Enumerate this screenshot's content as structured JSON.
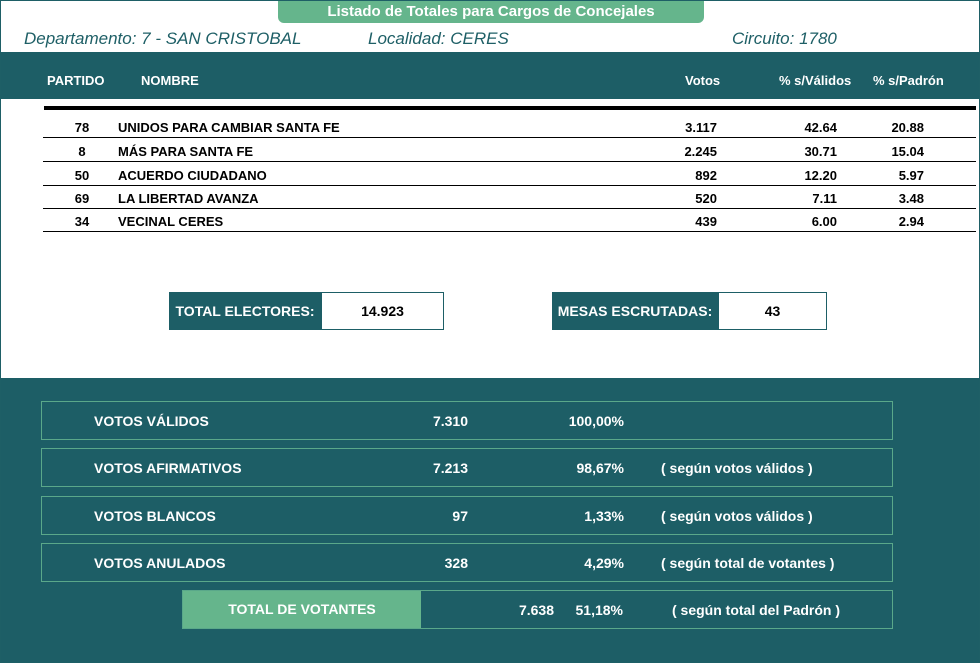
{
  "title": "Listado de Totales para Cargos de Concejales",
  "location": {
    "departamento": "Departamento: 7 - SAN CRISTOBAL",
    "localidad": "Localidad: CERES",
    "circuito": "Circuito: 1780"
  },
  "table": {
    "headers": {
      "partido": "PARTIDO",
      "nombre": "NOMBRE",
      "votos": "Votos",
      "validos": "% s/Válidos",
      "padron": "% s/Padrón"
    },
    "rows": [
      {
        "partido": "78",
        "nombre": "UNIDOS PARA CAMBIAR SANTA FE",
        "votos": "3.117",
        "validos": "42.64",
        "padron": "20.88"
      },
      {
        "partido": "8",
        "nombre": "MÁS PARA SANTA FE",
        "votos": "2.245",
        "validos": "30.71",
        "padron": "15.04"
      },
      {
        "partido": "50",
        "nombre": "ACUERDO CIUDADANO",
        "votos": "892",
        "validos": "12.20",
        "padron": "5.97"
      },
      {
        "partido": "69",
        "nombre": "LA LIBERTAD AVANZA",
        "votos": "520",
        "validos": "7.11",
        "padron": "3.48"
      },
      {
        "partido": "34",
        "nombre": "VECINAL CERES",
        "votos": "439",
        "validos": "6.00",
        "padron": "2.94"
      }
    ]
  },
  "stats": {
    "total_electores_label": "TOTAL ELECTORES:",
    "total_electores_value": "14.923",
    "mesas_label": "MESAS ESCRUTADAS:",
    "mesas_value": "43"
  },
  "summary": [
    {
      "label": "VOTOS VÁLIDOS",
      "num": "7.310",
      "pct": "100,00%",
      "note": ""
    },
    {
      "label": "VOTOS AFIRMATIVOS",
      "num": "7.213",
      "pct": "98,67%",
      "note": "( según votos válidos )"
    },
    {
      "label": "VOTOS BLANCOS",
      "num": "97",
      "pct": "1,33%",
      "note": "( según votos válidos )"
    },
    {
      "label": "VOTOS ANULADOS",
      "num": "328",
      "pct": "4,29%",
      "note": "( según total de votantes )"
    }
  ],
  "total_votantes": {
    "label": "TOTAL DE VOTANTES",
    "num": "7.638",
    "pct": "51,18%",
    "note": "( según total del Padrón )"
  }
}
